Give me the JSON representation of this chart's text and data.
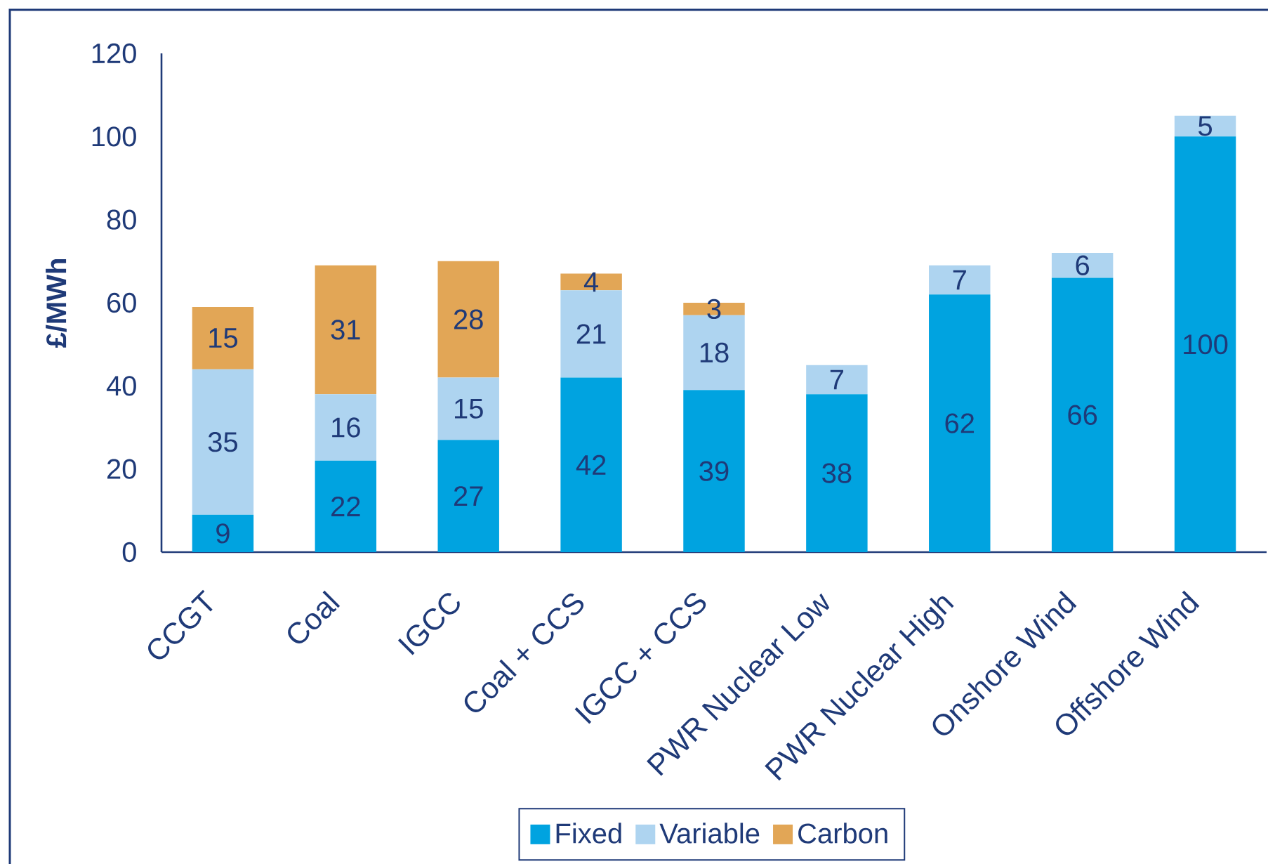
{
  "chart_data": {
    "type": "bar",
    "stacked": true,
    "ylabel": "£/MWh",
    "categories": [
      "CCGT",
      "Coal",
      "IGCC",
      "Coal + CCS",
      "IGCC + CCS",
      "PWR Nuclear Low",
      "PWR Nuclear  High",
      "Onshore Wind",
      "Offshore Wind"
    ],
    "series": [
      {
        "name": "Fixed",
        "color": "#00a3e0",
        "values": [
          9,
          22,
          27,
          42,
          39,
          38,
          62,
          66,
          100
        ]
      },
      {
        "name": "Variable",
        "color": "#aed4f0",
        "values": [
          35,
          16,
          15,
          21,
          18,
          7,
          7,
          6,
          5
        ]
      },
      {
        "name": "Carbon",
        "color": "#e2a656",
        "values": [
          15,
          31,
          28,
          4,
          3,
          null,
          null,
          null,
          null
        ]
      }
    ],
    "ylim": [
      0,
      120
    ],
    "yticks": [
      0,
      20,
      40,
      60,
      80,
      100,
      120
    ],
    "data_labels": true,
    "legend": "bottom"
  }
}
